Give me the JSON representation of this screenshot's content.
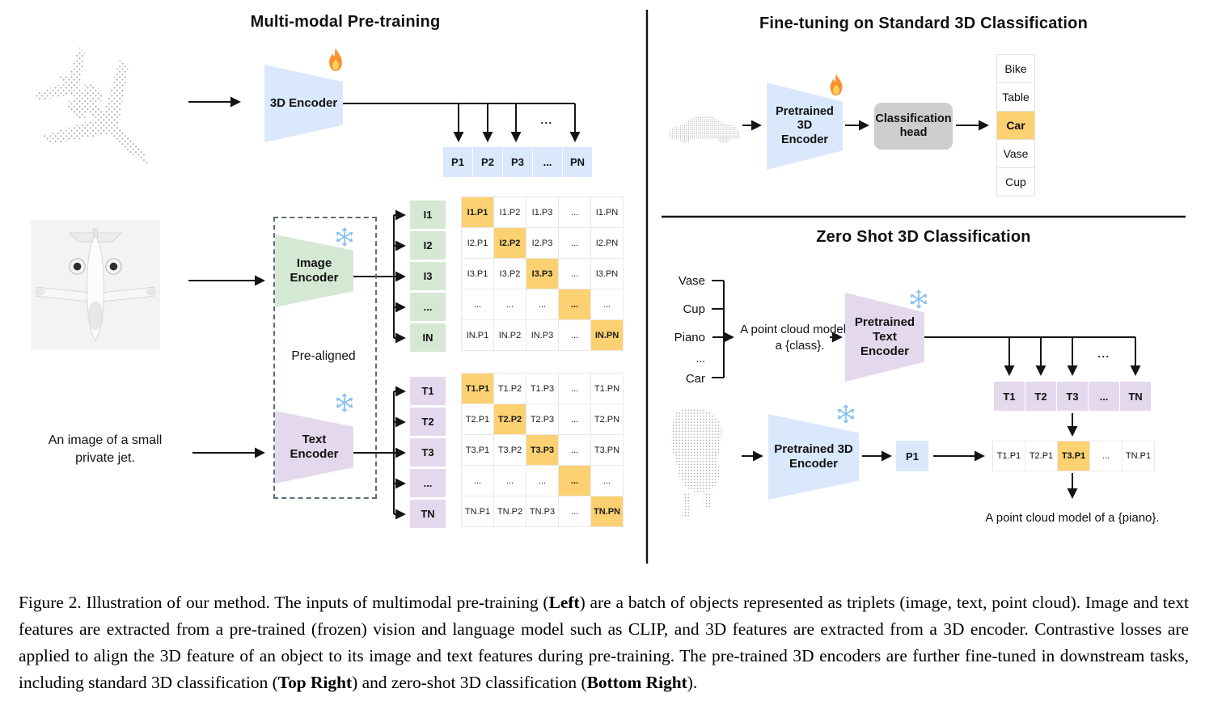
{
  "figure": {
    "left": {
      "title": "Multi-modal Pre-training",
      "encoder_3d_label": "3D Encoder",
      "p_row": [
        "P1",
        "P2",
        "P3",
        "...",
        "PN"
      ],
      "image_encoder_label": "Image\nEncoder",
      "text_encoder_label": "Text\nEncoder",
      "pre_aligned": "Pre-aligned",
      "image_input_caption": "An image of a small\nprivate jet.",
      "i_cells": [
        "I1",
        "I2",
        "I3",
        "...",
        "IN"
      ],
      "t_cells": [
        "T1",
        "T2",
        "T3",
        "...",
        "TN"
      ],
      "i_matrix": {
        "highlight": "diagonal",
        "rows": [
          [
            "I1.P1",
            "I1.P2",
            "I1.P3",
            "...",
            "I1.PN"
          ],
          [
            "I2.P1",
            "I2.P2",
            "I2.P3",
            "...",
            "I2.PN"
          ],
          [
            "I3.P1",
            "I3.P2",
            "I3.P3",
            "...",
            "I3.PN"
          ],
          [
            "...",
            "...",
            "...",
            "...",
            "..."
          ],
          [
            "IN.P1",
            "IN.P2",
            "IN.P3",
            "...",
            "IN.PN"
          ]
        ]
      },
      "t_matrix": {
        "highlight": "diagonal",
        "rows": [
          [
            "T1.P1",
            "T1.P2",
            "T1.P3",
            "...",
            "T1.PN"
          ],
          [
            "T2.P1",
            "T2.P2",
            "T2.P3",
            "...",
            "T2.PN"
          ],
          [
            "T3.P1",
            "T3.P2",
            "T3.P3",
            "...",
            "T3.PN"
          ],
          [
            "...",
            "...",
            "...",
            "...",
            "..."
          ],
          [
            "TN.P1",
            "TN.P2",
            "TN.P3",
            "...",
            "TN.PN"
          ]
        ]
      }
    },
    "top_right": {
      "title": "Fine-tuning on Standard 3D Classification",
      "encoder_label": "Pretrained 3D\nEncoder",
      "head_label": "Classification\nhead",
      "classes": [
        "Bike",
        "Table",
        "Car",
        "Vase",
        "Cup"
      ],
      "highlighted_class": "Car"
    },
    "bottom_right": {
      "title": "Zero Shot 3D Classification",
      "class_prompts": [
        "Vase",
        "Cup",
        "Piano",
        "...",
        "Car"
      ],
      "prompt_template": "A point cloud model of\na {class}.",
      "text_encoder_label": "Pretrained Text\nEncoder",
      "t_row": [
        "T1",
        "T2",
        "T3",
        "...",
        "TN"
      ],
      "encoder_3d_label": "Pretrained 3D\nEncoder",
      "p_cell": "P1",
      "sim_row": [
        "T1.P1",
        "T2.P1",
        "T3.P1",
        "...",
        "TN.P1"
      ],
      "sim_highlight": "T3.P1",
      "result_text": "A point cloud model of a {piano}."
    },
    "ellipsis": "..."
  },
  "caption": {
    "segments": [
      {
        "text": "Figure 2. Illustration of our method. The inputs of multimodal pre-training (",
        "bold": false
      },
      {
        "text": "Left",
        "bold": true
      },
      {
        "text": ") are a batch of objects represented as triplets (image, text, point cloud).  Image and text features are extracted from a pre-trained (frozen) vision and language model such as CLIP, and 3D features are extracted from a 3D encoder.  Contrastive losses are applied to align the 3D feature of an object to its image and text features during pre-training.  The pre-trained 3D encoders are further fine-tuned in downstream tasks, including standard 3D classification (",
        "bold": false
      },
      {
        "text": "Top Right",
        "bold": true
      },
      {
        "text": ") and zero-shot 3D classification (",
        "bold": false
      },
      {
        "text": "Bottom Right",
        "bold": true
      },
      {
        "text": ").",
        "bold": false
      }
    ]
  },
  "colors": {
    "blue": "#dae8fc",
    "green": "#d5e8d4",
    "purple": "#e4d9ec",
    "orange": "#fbd172",
    "gray": "#cecece"
  }
}
